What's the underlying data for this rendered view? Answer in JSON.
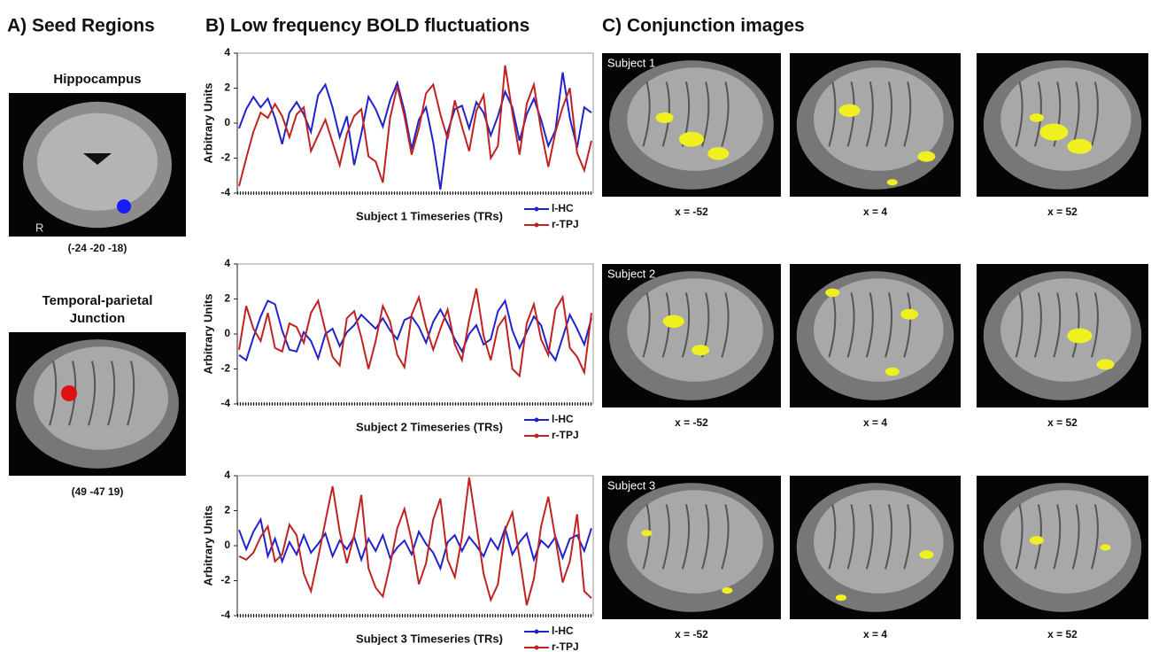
{
  "panel_a": {
    "title": "A) Seed Regions",
    "seeds": [
      {
        "label_lines": [
          "Hippocampus"
        ],
        "coords": "(-24 -20 -18)",
        "side_label": "R",
        "color": "#1a1aff"
      },
      {
        "label_lines": [
          "Temporal-parietal",
          "Junction"
        ],
        "coords": "(49 -47 19)",
        "color": "#e01010"
      }
    ]
  },
  "panel_b": {
    "title": "B) Low frequency BOLD fluctuations"
  },
  "chart_data": [
    {
      "type": "line",
      "xlabel": "Subject 1 Timeseries (TRs)",
      "ylabel": "Arbitrary Units",
      "ylim": [
        -4,
        4
      ],
      "yticks": [
        -4,
        -2,
        0,
        2,
        4
      ],
      "series": [
        {
          "name": "l-HC",
          "color": "#2222cc",
          "values": [
            -0.3,
            0.8,
            1.5,
            0.9,
            1.4,
            0.3,
            -1.2,
            0.6,
            1.2,
            0.5,
            -0.5,
            1.6,
            2.2,
            0.9,
            -0.8,
            0.4,
            -2.4,
            -0.6,
            1.5,
            0.8,
            -0.2,
            1.3,
            2.3,
            0.7,
            -1.5,
            0.2,
            0.9,
            -1.1,
            -3.8,
            -0.5,
            0.8,
            1.0,
            -0.3,
            1.2,
            0.6,
            -0.7,
            0.4,
            1.8,
            0.9,
            -1.0,
            0.5,
            1.4,
            0.2,
            -1.3,
            -0.4,
            2.9,
            0.3,
            -1.4,
            0.9,
            0.6
          ]
        },
        {
          "name": "r-TPJ",
          "color": "#c02222",
          "values": [
            -3.6,
            -2.0,
            -0.5,
            0.6,
            0.3,
            1.1,
            0.4,
            -0.8,
            0.5,
            0.9,
            -1.6,
            -0.7,
            0.2,
            -1.1,
            -2.4,
            -0.6,
            0.4,
            0.8,
            -1.9,
            -2.2,
            -3.4,
            0.3,
            2.1,
            0.4,
            -1.8,
            -0.3,
            1.7,
            2.2,
            0.5,
            -0.9,
            1.3,
            -0.2,
            -1.6,
            0.7,
            1.6,
            -2.0,
            -1.3,
            3.3,
            0.6,
            -1.8,
            1.1,
            2.2,
            -0.4,
            -2.5,
            -0.5,
            0.9,
            2.0,
            -1.7,
            -2.7,
            -1.0
          ]
        }
      ]
    },
    {
      "type": "line",
      "xlabel": "Subject 2 Timeseries (TRs)",
      "ylabel": "Arbitrary Units",
      "ylim": [
        -4,
        4
      ],
      "yticks": [
        -4,
        -2,
        0,
        2,
        4
      ],
      "series": [
        {
          "name": "l-HC",
          "color": "#2222cc",
          "values": [
            -1.2,
            -1.5,
            -0.2,
            1.0,
            1.9,
            1.7,
            0.2,
            -0.9,
            -1.0,
            0.1,
            -0.4,
            -1.4,
            0.0,
            0.3,
            -0.7,
            0.1,
            0.5,
            1.1,
            0.7,
            0.3,
            0.9,
            0.2,
            -0.3,
            0.8,
            1.0,
            0.4,
            -0.5,
            0.7,
            1.4,
            0.6,
            -0.3,
            -1.0,
            0.0,
            0.5,
            -0.6,
            -0.3,
            1.3,
            1.9,
            0.2,
            -0.8,
            0.1,
            1.0,
            0.5,
            -0.9,
            -1.5,
            -0.2,
            1.1,
            0.3,
            -0.6,
            0.9
          ]
        },
        {
          "name": "r-TPJ",
          "color": "#c02222",
          "values": [
            -0.9,
            1.6,
            0.3,
            -0.4,
            1.2,
            -0.8,
            -1.0,
            0.6,
            0.4,
            -0.5,
            1.2,
            1.9,
            0.2,
            -1.3,
            -1.8,
            0.9,
            1.3,
            -0.2,
            -2.0,
            -0.4,
            1.6,
            0.7,
            -1.2,
            -1.9,
            1.1,
            2.1,
            0.4,
            -0.9,
            0.3,
            1.4,
            -0.6,
            -1.5,
            0.8,
            2.6,
            -0.1,
            -1.5,
            0.4,
            1.0,
            -2.0,
            -2.4,
            0.6,
            1.7,
            -0.3,
            -1.2,
            1.4,
            2.1,
            -0.8,
            -1.3,
            -2.2,
            1.2
          ]
        }
      ]
    },
    {
      "type": "line",
      "xlabel": "Subject 3 Timeseries (TRs)",
      "ylabel": "Arbitrary Units",
      "ylim": [
        -4,
        4
      ],
      "yticks": [
        -4,
        -2,
        0,
        2,
        4
      ],
      "series": [
        {
          "name": "l-HC",
          "color": "#2222cc",
          "values": [
            0.9,
            -0.2,
            0.8,
            1.5,
            -0.6,
            0.4,
            -0.9,
            0.2,
            -0.5,
            0.6,
            -0.4,
            0.1,
            0.7,
            -0.6,
            0.3,
            -0.2,
            0.5,
            -0.8,
            0.4,
            -0.3,
            0.6,
            -0.7,
            -0.1,
            0.3,
            -0.5,
            0.8,
            0.1,
            -0.4,
            -1.3,
            0.2,
            0.6,
            -0.3,
            0.5,
            0.0,
            -0.6,
            0.4,
            -0.2,
            1.0,
            -0.5,
            0.2,
            0.7,
            -0.8,
            0.3,
            -0.1,
            0.5,
            -0.7,
            0.4,
            0.6,
            -0.3,
            1.0
          ]
        },
        {
          "name": "r-TPJ",
          "color": "#c02222",
          "values": [
            -0.6,
            -0.8,
            -0.4,
            0.5,
            1.1,
            -0.9,
            -0.5,
            1.2,
            0.6,
            -1.6,
            -2.6,
            -0.7,
            1.4,
            3.4,
            0.8,
            -1.0,
            0.6,
            2.9,
            -1.3,
            -2.4,
            -2.9,
            -1.1,
            1.0,
            2.1,
            0.3,
            -2.2,
            -1.0,
            1.5,
            2.7,
            -0.8,
            -1.8,
            0.5,
            3.9,
            1.2,
            -1.6,
            -3.1,
            -2.2,
            0.9,
            1.9,
            -0.7,
            -3.4,
            -1.9,
            1.1,
            2.8,
            0.4,
            -2.1,
            -0.9,
            1.8,
            -2.6,
            -3.0
          ]
        }
      ]
    }
  ],
  "panel_c": {
    "title": "C) Conjunction images",
    "rows": [
      {
        "subject": "Subject 1",
        "slices": [
          "x = -52",
          "x = 4",
          "x = 52"
        ]
      },
      {
        "subject": "Subject 2",
        "slices": [
          "x = -52",
          "x = 4",
          "x = 52"
        ]
      },
      {
        "subject": "Subject 3",
        "slices": [
          "x = -52",
          "x = 4",
          "x = 52"
        ]
      }
    ]
  }
}
